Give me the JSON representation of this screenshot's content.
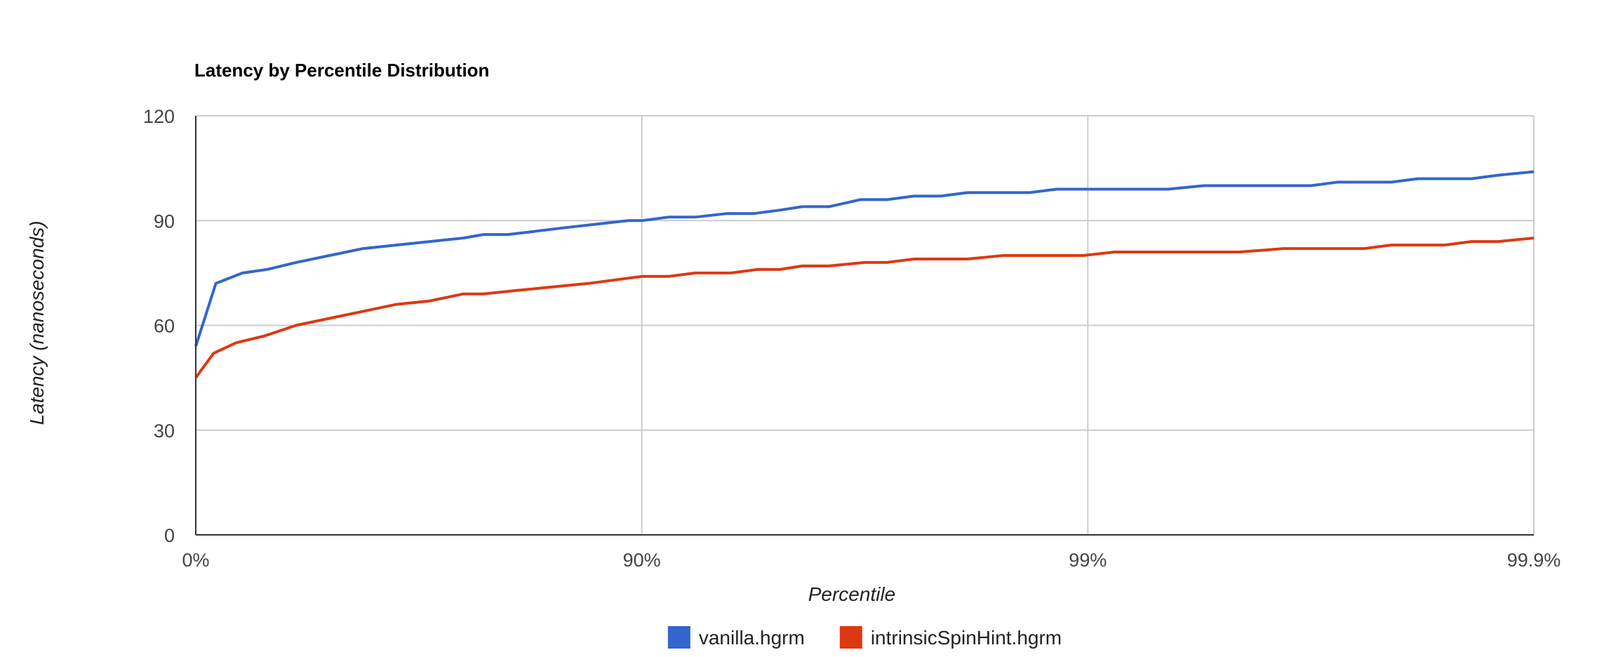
{
  "chart_data": {
    "type": "line",
    "title": "Latency by Percentile Distribution",
    "xlabel": "Percentile",
    "ylabel": "Latency (nanoseconds)",
    "ylim": [
      0,
      120
    ],
    "yticks": [
      "0",
      "30",
      "60",
      "90",
      "120"
    ],
    "x_scale": "log-percentile",
    "xlim": [
      0,
      3
    ],
    "xticks": [
      {
        "value": 0,
        "label": "0%"
      },
      {
        "value": 1,
        "label": "90%"
      },
      {
        "value": 2,
        "label": "99%"
      },
      {
        "value": 3,
        "label": "99.9%"
      }
    ],
    "grid": true,
    "legend_position": "bottom",
    "series": [
      {
        "name": "vanilla.hgrm",
        "color": "#3366cc",
        "x": [
          0,
          0.045,
          0.105,
          0.16,
          0.225,
          0.3,
          0.375,
          0.45,
          0.525,
          0.6,
          0.645,
          0.7,
          0.765,
          0.83,
          0.9,
          0.97,
          1.0,
          1.06,
          1.12,
          1.19,
          1.25,
          1.31,
          1.36,
          1.42,
          1.49,
          1.55,
          1.61,
          1.67,
          1.73,
          1.81,
          1.87,
          1.93,
          1.99,
          2.06,
          2.12,
          2.18,
          2.26,
          2.34,
          2.44,
          2.5,
          2.56,
          2.62,
          2.68,
          2.74,
          2.8,
          2.86,
          2.92,
          3.0
        ],
        "values": [
          54,
          72,
          75,
          76,
          78,
          80,
          82,
          83,
          84,
          85,
          86,
          86,
          87,
          88,
          89,
          90,
          90,
          91,
          91,
          92,
          92,
          93,
          94,
          94,
          96,
          96,
          97,
          97,
          98,
          98,
          98,
          99,
          99,
          99,
          99,
          99,
          100,
          100,
          100,
          100,
          101,
          101,
          101,
          102,
          102,
          102,
          103,
          104
        ]
      },
      {
        "name": "intrinsicSpinHint.hgrm",
        "color": "#dc3912",
        "x": [
          0,
          0.04,
          0.09,
          0.155,
          0.225,
          0.3,
          0.375,
          0.45,
          0.525,
          0.6,
          0.645,
          0.72,
          0.8,
          0.88,
          0.94,
          1.0,
          1.06,
          1.12,
          1.2,
          1.26,
          1.31,
          1.36,
          1.42,
          1.5,
          1.55,
          1.61,
          1.67,
          1.73,
          1.81,
          1.87,
          1.93,
          1.99,
          2.06,
          2.12,
          2.18,
          2.26,
          2.34,
          2.44,
          2.5,
          2.56,
          2.62,
          2.68,
          2.74,
          2.8,
          2.86,
          2.92,
          3.0
        ],
        "values": [
          45,
          52,
          55,
          57,
          60,
          62,
          64,
          66,
          67,
          69,
          69,
          70,
          71,
          72,
          73,
          74,
          74,
          75,
          75,
          76,
          76,
          77,
          77,
          78,
          78,
          79,
          79,
          79,
          80,
          80,
          80,
          80,
          81,
          81,
          81,
          81,
          81,
          82,
          82,
          82,
          82,
          83,
          83,
          83,
          84,
          84,
          85
        ]
      }
    ]
  }
}
